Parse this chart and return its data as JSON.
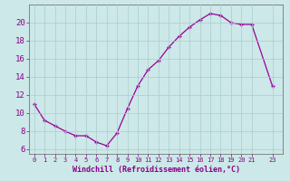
{
  "x": [
    0,
    1,
    2,
    3,
    4,
    5,
    6,
    7,
    8,
    9,
    10,
    11,
    12,
    13,
    14,
    15,
    16,
    17,
    18,
    19,
    20,
    21,
    23
  ],
  "y": [
    11.0,
    9.2,
    8.6,
    8.0,
    7.5,
    7.5,
    6.8,
    6.4,
    7.8,
    10.5,
    13.0,
    14.8,
    15.8,
    17.3,
    18.5,
    19.5,
    20.3,
    21.0,
    20.8,
    20.0,
    19.8,
    19.8,
    13.0
  ],
  "line_color": "#990099",
  "marker": "+",
  "marker_color": "#990099",
  "bg_color": "#cce8e8",
  "grid_color": "#aacccc",
  "xlabel": "Windchill (Refroidissement éolien,°C)",
  "xlabel_color": "#880088",
  "tick_color": "#880088",
  "ylim": [
    5.5,
    22
  ],
  "yticks": [
    6,
    8,
    10,
    12,
    14,
    16,
    18,
    20
  ],
  "xticks": [
    0,
    1,
    2,
    3,
    4,
    5,
    6,
    7,
    8,
    9,
    10,
    11,
    12,
    13,
    14,
    15,
    16,
    17,
    18,
    19,
    20,
    21,
    23
  ],
  "xtick_labels": [
    "0",
    "1",
    "2",
    "3",
    "4",
    "5",
    "6",
    "7",
    "8",
    "9",
    "10",
    "11",
    "12",
    "13",
    "14",
    "15",
    "16",
    "17",
    "18",
    "19",
    "20",
    "21",
    "23"
  ]
}
